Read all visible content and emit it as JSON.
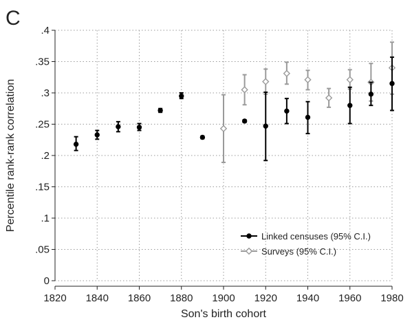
{
  "panel_letter": "C",
  "chart_data": {
    "type": "scatter",
    "title": "",
    "xlabel": "Son's birth cohort",
    "ylabel": "Percentile rank-rank correlation",
    "xlim": [
      1820,
      1980
    ],
    "ylim": [
      0,
      0.4
    ],
    "x_ticks": [
      1820,
      1840,
      1860,
      1880,
      1900,
      1920,
      1940,
      1960,
      1980
    ],
    "x_tick_labels": [
      "1820",
      "1840",
      "1860",
      "1880",
      "1900",
      "1920",
      "1940",
      "1960",
      "1980"
    ],
    "y_ticks": [
      0,
      0.05,
      0.1,
      0.15,
      0.2,
      0.25,
      0.3,
      0.35,
      0.4
    ],
    "y_tick_labels": [
      "0",
      ".05",
      ".1",
      ".15",
      ".2",
      ".25",
      ".3",
      ".35",
      ".4"
    ],
    "grid": true,
    "legend_position": "bottom-right",
    "series": [
      {
        "name": "Linked censuses (95% C.I.)",
        "color": "#000000",
        "marker": "circle",
        "points": [
          {
            "x": 1830,
            "y": 0.218,
            "lo": 0.208,
            "hi": 0.23
          },
          {
            "x": 1840,
            "y": 0.233,
            "lo": 0.226,
            "hi": 0.24
          },
          {
            "x": 1850,
            "y": 0.246,
            "lo": 0.238,
            "hi": 0.254
          },
          {
            "x": 1860,
            "y": 0.245,
            "lo": 0.24,
            "hi": 0.251
          },
          {
            "x": 1870,
            "y": 0.272,
            "lo": 0.269,
            "hi": 0.275
          },
          {
            "x": 1880,
            "y": 0.295,
            "lo": 0.291,
            "hi": 0.3
          },
          {
            "x": 1890,
            "y": 0.229,
            "lo": 0.227,
            "hi": 0.231
          },
          {
            "x": 1910,
            "y": 0.255,
            "lo": 0.253,
            "hi": 0.257
          },
          {
            "x": 1920,
            "y": 0.247,
            "lo": 0.192,
            "hi": 0.301
          },
          {
            "x": 1930,
            "y": 0.271,
            "lo": 0.251,
            "hi": 0.291
          },
          {
            "x": 1940,
            "y": 0.261,
            "lo": 0.235,
            "hi": 0.286
          },
          {
            "x": 1960,
            "y": 0.28,
            "lo": 0.251,
            "hi": 0.309
          },
          {
            "x": 1970,
            "y": 0.298,
            "lo": 0.28,
            "hi": 0.317
          },
          {
            "x": 1980,
            "y": 0.315,
            "lo": 0.272,
            "hi": 0.357
          }
        ]
      },
      {
        "name": "Surveys (95% C.I.)",
        "color": "#9a9a9a",
        "marker": "diamond-open",
        "points": [
          {
            "x": 1900,
            "y": 0.243,
            "lo": 0.189,
            "hi": 0.297
          },
          {
            "x": 1910,
            "y": 0.305,
            "lo": 0.281,
            "hi": 0.329
          },
          {
            "x": 1920,
            "y": 0.318,
            "lo": 0.298,
            "hi": 0.338
          },
          {
            "x": 1930,
            "y": 0.331,
            "lo": 0.314,
            "hi": 0.349
          },
          {
            "x": 1940,
            "y": 0.321,
            "lo": 0.305,
            "hi": 0.336
          },
          {
            "x": 1950,
            "y": 0.292,
            "lo": 0.277,
            "hi": 0.307
          },
          {
            "x": 1960,
            "y": 0.321,
            "lo": 0.306,
            "hi": 0.337
          },
          {
            "x": 1970,
            "y": 0.317,
            "lo": 0.287,
            "hi": 0.347
          },
          {
            "x": 1980,
            "y": 0.34,
            "lo": 0.298,
            "hi": 0.381
          }
        ]
      }
    ]
  }
}
